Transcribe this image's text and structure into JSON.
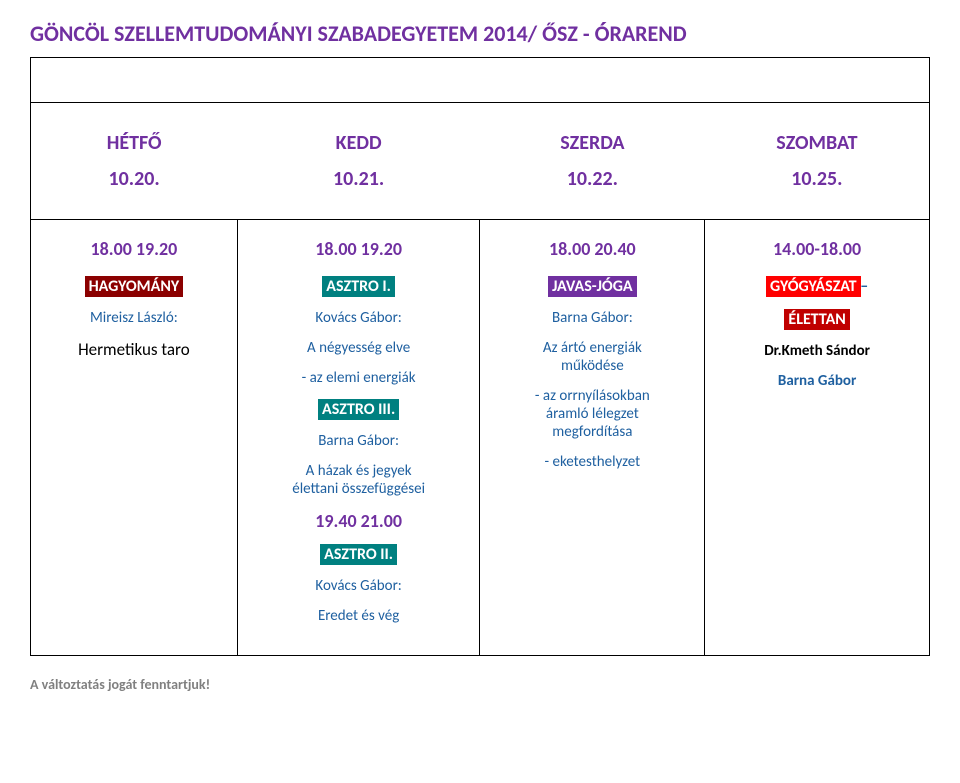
{
  "title": "GÖNCÖL SZELLEMTUDOMÁNYI SZABADEGYETEM 2014/ ŐSZ - ÓRAREND",
  "header": {
    "days": [
      "HÉTFŐ",
      "KEDD",
      "SZERDA",
      "SZOMBAT"
    ],
    "dates": [
      "10.20.",
      "10.21.",
      "10.22.",
      "10.25."
    ]
  },
  "cells": {
    "c1": {
      "time": "18.00 19.20",
      "tag": "HAGYOMÁNY",
      "person": "Mireisz László:",
      "topic": "Hermetikus taro"
    },
    "c2": {
      "time": "18.00 19.20",
      "tag1": "ASZTRO I.",
      "person1": "Kovács Gábor:",
      "topic1": "A négyesség elve",
      "topic1b": "- az elemi energiák",
      "tag2": "ASZTRO III.",
      "person2": "Barna Gábor:",
      "topic2a": "A házak és jegyek",
      "topic2b": "élettani összefüggései",
      "time2": "19.40 21.00",
      "tag3": "ASZTRO II.",
      "person3": "Kovács Gábor:",
      "topic3": "Eredet és vég"
    },
    "c3": {
      "time": "18.00 20.40",
      "tag": "JAVAS-JÓGA",
      "person": "Barna Gábor:",
      "t1": "Az ártó energiák",
      "t2": "működése",
      "t3": "- az orrnyílásokban",
      "t4": "áramló lélegzet",
      "t5": "megfordítása",
      "t6": "- eketesthelyzet"
    },
    "c4": {
      "time": "14.00-18.00",
      "tag1": "GYÓGYÁSZAT",
      "tag2": "ÉLETTAN",
      "p1": "Dr.Kmeth Sándor",
      "p2": "Barna Gábor"
    }
  },
  "footer": "A változtatás jogát fenntartjuk!",
  "colors": {
    "purple": "#7030a0",
    "blue": "#1f60a0",
    "darkred": "#8b0000",
    "teal": "#008080",
    "red": "#ff0000",
    "red2": "#c00000",
    "gray": "#808080"
  }
}
